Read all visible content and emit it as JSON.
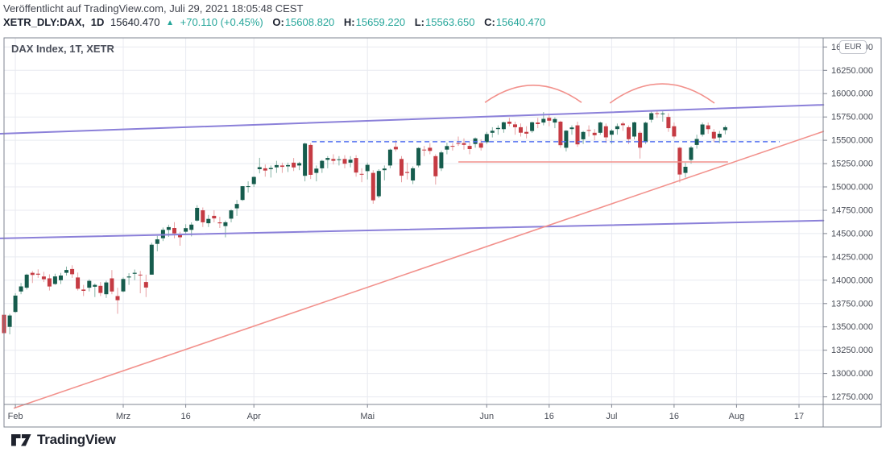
{
  "header": {
    "published": "Veröffentlicht auf TradingView.com, Juli 29, 2021 18:05:48 CEST",
    "symbol": "XETR_DLY:DAX,",
    "interval": "1D",
    "last_price": "15640.470",
    "direction_icon": "▲",
    "change": "+70.110 (+0.45%)",
    "open_label": "O:",
    "open": "15608.820",
    "high_label": "H:",
    "high": "15659.220",
    "low_label": "L:",
    "low": "15563.650",
    "close_label": "C:",
    "close": "15640.470"
  },
  "chart_title": "DAX Index, 1T, XETR",
  "currency_badge": "EUR",
  "footer": {
    "brand": "TradingView"
  },
  "colors": {
    "up_body": "#165c4d",
    "up_wick": "#86b3a5",
    "down_body": "#c53b43",
    "down_wick": "#e7a2a5",
    "grid": "#e8eaf0",
    "border": "#7f8490",
    "axis_text": "#494d57",
    "purple_line": "#8b80d9",
    "salmon_line": "#f2918c",
    "dashed_blue": "#5472f0",
    "teal": "#26a69a",
    "dark": "#1d2330"
  },
  "chart_data": {
    "type": "candlestick",
    "title": "DAX Index, 1T, XETR",
    "currency": "EUR",
    "y_axis": {
      "min": 12750,
      "max": 16500,
      "tick_step": 250,
      "ticks": [
        {
          "price": 16500,
          "label": "16500.000"
        },
        {
          "price": 16250,
          "label": "16250.000"
        },
        {
          "price": 16000,
          "label": "16000.000"
        },
        {
          "price": 15750,
          "label": "15750.000"
        },
        {
          "price": 15500,
          "label": "15500.000"
        },
        {
          "price": 15250,
          "label": "15250.000"
        },
        {
          "price": 15000,
          "label": "15000.000"
        },
        {
          "price": 14750,
          "label": "14750.000"
        },
        {
          "price": 14500,
          "label": "14500.000"
        },
        {
          "price": 14250,
          "label": "14250.000"
        },
        {
          "price": 14000,
          "label": "14000.000"
        },
        {
          "price": 13750,
          "label": "13750.000"
        },
        {
          "price": 13500,
          "label": "13500.000"
        },
        {
          "price": 13250,
          "label": "13250.000"
        },
        {
          "price": 13000,
          "label": "13000.000"
        },
        {
          "price": 12750,
          "label": "12750.000"
        }
      ]
    },
    "x_axis": {
      "ticks": [
        {
          "i": 2,
          "label": "Feb"
        },
        {
          "i": 21,
          "label": "Mrz"
        },
        {
          "i": 32,
          "label": "16"
        },
        {
          "i": 44,
          "label": "Apr"
        },
        {
          "i": 64,
          "label": "Mai"
        },
        {
          "i": 85,
          "label": "Jun"
        },
        {
          "i": 96,
          "label": "16"
        },
        {
          "i": 107,
          "label": "Jul"
        },
        {
          "i": 118,
          "label": "16"
        },
        {
          "i": 129,
          "label": "Aug"
        },
        {
          "i": 140,
          "label": "17"
        }
      ]
    },
    "candles": [
      [
        13630,
        13723,
        13310,
        13433
      ],
      [
        13500,
        13640,
        13420,
        13622
      ],
      [
        13660,
        13860,
        13650,
        13835
      ],
      [
        13880,
        13971,
        13850,
        13934
      ],
      [
        13920,
        14070,
        13900,
        14060
      ],
      [
        14080,
        14100,
        13970,
        14057
      ],
      [
        14070,
        14117,
        14025,
        14060
      ],
      [
        14040,
        14090,
        13980,
        14011
      ],
      [
        14020,
        14063,
        13890,
        13933
      ],
      [
        13960,
        14070,
        13950,
        14041
      ],
      [
        14000,
        14080,
        13960,
        14050
      ],
      [
        14080,
        14146,
        14050,
        14110
      ],
      [
        14120,
        14160,
        14025,
        14064
      ],
      [
        14030,
        14082,
        13890,
        13909
      ],
      [
        13900,
        13950,
        13830,
        13886
      ],
      [
        13920,
        14010,
        13880,
        13993
      ],
      [
        13930,
        13965,
        13820,
        13950
      ],
      [
        13940,
        13980,
        13830,
        13864
      ],
      [
        13850,
        13995,
        13810,
        13976
      ],
      [
        14020,
        14109,
        13850,
        13879
      ],
      [
        13830,
        13920,
        13640,
        13786
      ],
      [
        13880,
        14030,
        13870,
        14013
      ],
      [
        14030,
        14075,
        13950,
        14040
      ],
      [
        14070,
        14115,
        14000,
        14080
      ],
      [
        14060,
        14100,
        13860,
        14056
      ],
      [
        13980,
        14060,
        13820,
        13921
      ],
      [
        14060,
        14402,
        14060,
        14381
      ],
      [
        14390,
        14475,
        14310,
        14438
      ],
      [
        14450,
        14565,
        14420,
        14540
      ],
      [
        14540,
        14595,
        14465,
        14569
      ],
      [
        14560,
        14622,
        14450,
        14502
      ],
      [
        14490,
        14520,
        14370,
        14461
      ],
      [
        14520,
        14600,
        14490,
        14558
      ],
      [
        14540,
        14620,
        14470,
        14596
      ],
      [
        14640,
        14804,
        14630,
        14776
      ],
      [
        14750,
        14780,
        14570,
        14621
      ],
      [
        14610,
        14700,
        14570,
        14657
      ],
      [
        14690,
        14750,
        14620,
        14662
      ],
      [
        14620,
        14680,
        14560,
        14610
      ],
      [
        14580,
        14640,
        14460,
        14621
      ],
      [
        14660,
        14760,
        14620,
        14749
      ],
      [
        14770,
        14860,
        14690,
        14817
      ],
      [
        14860,
        15010,
        14850,
        15008
      ],
      [
        15000,
        15060,
        14940,
        15008
      ],
      [
        15030,
        15115,
        15000,
        15107
      ],
      [
        15190,
        15312,
        15145,
        15212
      ],
      [
        15200,
        15240,
        15110,
        15176
      ],
      [
        15190,
        15230,
        15100,
        15203
      ],
      [
        15210,
        15280,
        15150,
        15234
      ],
      [
        15230,
        15260,
        15150,
        15215
      ],
      [
        15220,
        15260,
        15160,
        15234
      ],
      [
        15260,
        15310,
        15170,
        15209
      ],
      [
        15230,
        15270,
        15180,
        15255
      ],
      [
        15120,
        15475,
        15060,
        15465
      ],
      [
        15450,
        15470,
        15085,
        15130
      ],
      [
        15150,
        15230,
        15060,
        15196
      ],
      [
        15200,
        15290,
        15150,
        15280
      ],
      [
        15290,
        15330,
        15200,
        15310
      ],
      [
        15300,
        15350,
        15240,
        15280
      ],
      [
        15290,
        15330,
        15230,
        15296
      ],
      [
        15300,
        15340,
        15200,
        15249
      ],
      [
        15260,
        15330,
        15210,
        15292
      ],
      [
        15310,
        15340,
        15110,
        15154
      ],
      [
        15140,
        15200,
        15050,
        15136
      ],
      [
        15170,
        15260,
        15080,
        15237
      ],
      [
        15150,
        15180,
        14820,
        14856
      ],
      [
        14900,
        15190,
        14880,
        15171
      ],
      [
        15180,
        15230,
        15070,
        15197
      ],
      [
        15230,
        15410,
        15200,
        15400
      ],
      [
        15430,
        15501,
        15380,
        15402
      ],
      [
        15300,
        15330,
        15050,
        15120
      ],
      [
        15160,
        15260,
        15080,
        15150
      ],
      [
        15070,
        15220,
        15030,
        15200
      ],
      [
        15230,
        15425,
        15210,
        15417
      ],
      [
        15400,
        15440,
        15330,
        15397
      ],
      [
        15420,
        15470,
        15350,
        15386
      ],
      [
        15330,
        15350,
        15025,
        15114
      ],
      [
        15200,
        15390,
        15170,
        15370
      ],
      [
        15400,
        15475,
        15350,
        15438
      ],
      [
        15440,
        15470,
        15390,
        15438
      ],
      [
        15470,
        15540,
        15440,
        15465
      ],
      [
        15470,
        15520,
        15400,
        15451
      ],
      [
        15440,
        15480,
        15350,
        15406
      ],
      [
        15460,
        15530,
        15420,
        15520
      ],
      [
        15470,
        15510,
        15390,
        15421
      ],
      [
        15480,
        15590,
        15460,
        15567
      ],
      [
        15580,
        15640,
        15530,
        15602
      ],
      [
        15620,
        15660,
        15560,
        15632
      ],
      [
        15620,
        15700,
        15580,
        15693
      ],
      [
        15700,
        15740,
        15650,
        15677
      ],
      [
        15670,
        15700,
        15560,
        15640
      ],
      [
        15640,
        15680,
        15540,
        15581
      ],
      [
        15590,
        15650,
        15520,
        15571
      ],
      [
        15600,
        15700,
        15580,
        15693
      ],
      [
        15690,
        15740,
        15630,
        15674
      ],
      [
        15690,
        15802,
        15660,
        15730
      ],
      [
        15740,
        15770,
        15650,
        15710
      ],
      [
        15690,
        15745,
        15630,
        15728
      ],
      [
        15700,
        15710,
        15420,
        15448
      ],
      [
        15420,
        15610,
        15380,
        15603
      ],
      [
        15620,
        15660,
        15560,
        15637
      ],
      [
        15660,
        15700,
        15430,
        15456
      ],
      [
        15510,
        15600,
        15460,
        15589
      ],
      [
        15610,
        15660,
        15540,
        15608
      ],
      [
        15580,
        15620,
        15500,
        15554
      ],
      [
        15580,
        15700,
        15560,
        15690
      ],
      [
        15650,
        15680,
        15470,
        15531
      ],
      [
        15560,
        15620,
        15460,
        15604
      ],
      [
        15620,
        15680,
        15560,
        15650
      ],
      [
        15680,
        15700,
        15600,
        15662
      ],
      [
        15640,
        15660,
        15460,
        15511
      ],
      [
        15540,
        15700,
        15510,
        15692
      ],
      [
        15580,
        15600,
        15304,
        15420
      ],
      [
        15480,
        15700,
        15460,
        15688
      ],
      [
        15720,
        15807,
        15690,
        15790
      ],
      [
        15790,
        15820,
        15740,
        15789
      ],
      [
        15780,
        15810,
        15700,
        15788
      ],
      [
        15750,
        15790,
        15590,
        15630
      ],
      [
        15650,
        15690,
        15520,
        15540
      ],
      [
        15420,
        15430,
        15048,
        15133
      ],
      [
        15150,
        15260,
        15100,
        15216
      ],
      [
        15290,
        15440,
        15250,
        15422
      ],
      [
        15450,
        15560,
        15410,
        15514
      ],
      [
        15560,
        15690,
        15540,
        15669
      ],
      [
        15660,
        15690,
        15570,
        15619
      ],
      [
        15590,
        15620,
        15480,
        15519
      ],
      [
        15530,
        15600,
        15470,
        15570
      ],
      [
        15609,
        15659,
        15564,
        15640
      ]
    ],
    "overlays": {
      "trendlines": [
        {
          "name": "channel-upper-trendline",
          "color_key": "purple_line",
          "width": 2,
          "i1": -0.7,
          "p1": 15570,
          "i2": 144.3,
          "p2": 15880
        },
        {
          "name": "channel-lower-trendline",
          "color_key": "purple_line",
          "width": 2,
          "i1": -0.7,
          "p1": 14448,
          "i2": 144.3,
          "p2": 14640
        },
        {
          "name": "rising-support-trendline",
          "color_key": "salmon_line",
          "width": 1.6,
          "i1": 1.8,
          "p1": 12630,
          "i2": 144.3,
          "p2": 15595
        },
        {
          "name": "horizontal-support-line",
          "color_key": "salmon_line",
          "width": 1.6,
          "i1": 80.1,
          "p1": 15268,
          "i2": 127.4,
          "p2": 15268
        }
      ],
      "dashed_level": {
        "name": "close-level-dashed-line",
        "price": 15485,
        "i1": 54.2,
        "i2": 136.6
      },
      "arcs": [
        {
          "name": "pattern-arc-1",
          "i1": 84.7,
          "i2": 101.7,
          "p_base": 15905,
          "p_peak": 16090
        },
        {
          "name": "pattern-arc-2",
          "i1": 106.7,
          "i2": 125.1,
          "p_base": 15898,
          "p_peak": 16105
        }
      ]
    }
  }
}
